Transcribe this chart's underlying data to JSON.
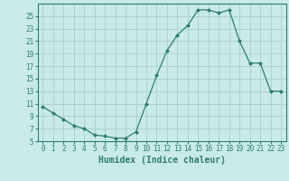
{
  "x": [
    0,
    1,
    2,
    3,
    4,
    5,
    6,
    7,
    8,
    9,
    10,
    11,
    12,
    13,
    14,
    15,
    16,
    17,
    18,
    19,
    20,
    21,
    22,
    23
  ],
  "y": [
    10.5,
    9.5,
    8.5,
    7.5,
    7.0,
    6.0,
    5.8,
    5.5,
    5.5,
    6.5,
    11.0,
    15.5,
    19.5,
    22.0,
    23.5,
    26.0,
    26.0,
    25.5,
    26.0,
    21.0,
    17.5,
    17.5,
    13.0,
    13.0
  ],
  "line_color": "#2e7d6e",
  "marker": "D",
  "marker_size": 2.0,
  "background_color": "#c8eae8",
  "grid_color": "#aacfcb",
  "axis_color": "#2e7d6e",
  "text_color": "#2e7d6e",
  "xlabel": "Humidex (Indice chaleur)",
  "ylim": [
    5,
    27
  ],
  "xlim": [
    -0.5,
    23.5
  ],
  "yticks": [
    5,
    7,
    9,
    11,
    13,
    15,
    17,
    19,
    21,
    23,
    25
  ],
  "xticks": [
    0,
    1,
    2,
    3,
    4,
    5,
    6,
    7,
    8,
    9,
    10,
    11,
    12,
    13,
    14,
    15,
    16,
    17,
    18,
    19,
    20,
    21,
    22,
    23
  ],
  "tick_fontsize": 5.5,
  "label_fontsize": 7.0
}
